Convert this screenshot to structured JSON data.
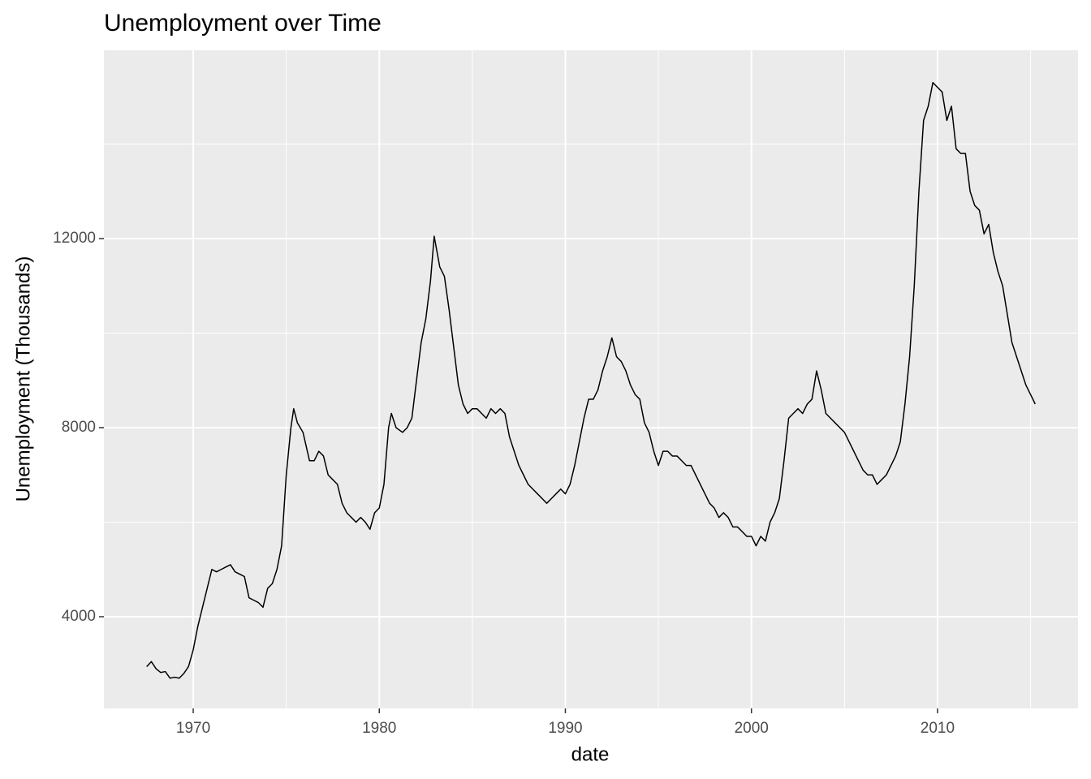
{
  "chart_data": {
    "type": "line",
    "title": "Unemployment over Time",
    "x_label": "date",
    "y_label": "Unemployment (Thousands)",
    "x": [
      1967.5,
      1967.75,
      1968,
      1968.25,
      1968.5,
      1968.75,
      1969,
      1969.25,
      1969.5,
      1969.75,
      1970,
      1970.25,
      1970.5,
      1970.75,
      1971,
      1971.25,
      1971.5,
      1971.75,
      1972,
      1972.25,
      1972.5,
      1972.75,
      1973,
      1973.25,
      1973.5,
      1973.75,
      1974,
      1974.25,
      1974.5,
      1974.75,
      1975,
      1975.25,
      1975.4,
      1975.6,
      1975.9,
      1976.25,
      1976.5,
      1976.75,
      1977,
      1977.25,
      1977.5,
      1977.75,
      1978,
      1978.25,
      1978.5,
      1978.75,
      1979,
      1979.25,
      1979.5,
      1979.75,
      1980,
      1980.25,
      1980.5,
      1980.65,
      1980.9,
      1981.25,
      1981.5,
      1981.75,
      1982,
      1982.25,
      1982.5,
      1982.75,
      1982.95,
      1983.25,
      1983.5,
      1983.75,
      1984,
      1984.25,
      1984.5,
      1984.75,
      1985,
      1985.25,
      1985.5,
      1985.75,
      1986,
      1986.25,
      1986.5,
      1986.75,
      1987,
      1987.25,
      1987.5,
      1987.75,
      1988,
      1988.25,
      1988.5,
      1988.75,
      1989,
      1989.25,
      1989.5,
      1989.75,
      1990,
      1990.25,
      1990.5,
      1990.75,
      1991,
      1991.25,
      1991.5,
      1991.75,
      1992,
      1992.25,
      1992.5,
      1992.75,
      1993,
      1993.25,
      1993.5,
      1993.75,
      1994,
      1994.25,
      1994.5,
      1994.75,
      1995,
      1995.25,
      1995.5,
      1995.75,
      1996,
      1996.25,
      1996.5,
      1996.75,
      1997,
      1997.25,
      1997.5,
      1997.75,
      1998,
      1998.25,
      1998.5,
      1998.75,
      1999,
      1999.25,
      1999.5,
      1999.75,
      2000,
      2000.25,
      2000.5,
      2000.75,
      2001,
      2001.25,
      2001.5,
      2001.75,
      2002,
      2002.25,
      2002.5,
      2002.75,
      2003,
      2003.25,
      2003.5,
      2003.75,
      2004,
      2004.25,
      2004.5,
      2004.75,
      2005,
      2005.25,
      2005.5,
      2005.75,
      2006,
      2006.25,
      2006.5,
      2006.75,
      2007,
      2007.25,
      2007.5,
      2007.75,
      2008,
      2008.25,
      2008.5,
      2008.75,
      2009,
      2009.25,
      2009.5,
      2009.75,
      2010,
      2010.25,
      2010.5,
      2010.75,
      2011,
      2011.25,
      2011.5,
      2011.75,
      2012,
      2012.25,
      2012.5,
      2012.75,
      2013,
      2013.25,
      2013.5,
      2013.75,
      2014,
      2014.25,
      2014.5,
      2014.75,
      2015,
      2015.25
    ],
    "values": [
      2944,
      3050,
      2900,
      2820,
      2840,
      2700,
      2720,
      2700,
      2800,
      2950,
      3300,
      3800,
      4200,
      4600,
      5000,
      4950,
      5000,
      5050,
      5100,
      4950,
      4900,
      4850,
      4400,
      4350,
      4300,
      4200,
      4600,
      4700,
      5000,
      5500,
      7000,
      8000,
      8400,
      8100,
      7900,
      7300,
      7300,
      7500,
      7400,
      7000,
      6900,
      6800,
      6400,
      6200,
      6100,
      6000,
      6100,
      6000,
      5850,
      6200,
      6300,
      6800,
      8000,
      8300,
      8000,
      7900,
      8000,
      8200,
      9000,
      9800,
      10300,
      11100,
      12050,
      11400,
      11200,
      10500,
      9700,
      8900,
      8500,
      8300,
      8400,
      8400,
      8300,
      8200,
      8400,
      8300,
      8400,
      8300,
      7800,
      7500,
      7200,
      7000,
      6800,
      6700,
      6600,
      6500,
      6400,
      6500,
      6600,
      6700,
      6600,
      6800,
      7200,
      7700,
      8200,
      8600,
      8600,
      8800,
      9200,
      9500,
      9900,
      9500,
      9400,
      9200,
      8900,
      8700,
      8600,
      8100,
      7900,
      7500,
      7200,
      7500,
      7500,
      7400,
      7400,
      7300,
      7200,
      7200,
      7000,
      6800,
      6600,
      6400,
      6300,
      6100,
      6200,
      6100,
      5900,
      5900,
      5800,
      5700,
      5700,
      5500,
      5700,
      5600,
      6000,
      6200,
      6500,
      7300,
      8200,
      8300,
      8400,
      8300,
      8500,
      8600,
      9200,
      8800,
      8300,
      8200,
      8100,
      8000,
      7900,
      7700,
      7500,
      7300,
      7100,
      7000,
      7000,
      6800,
      6900,
      7000,
      7200,
      7400,
      7700,
      8500,
      9500,
      11000,
      13000,
      14500,
      14800,
      15300,
      15200,
      15100,
      14500,
      14800,
      13900,
      13800,
      13800,
      13000,
      12700,
      12600,
      12100,
      12300,
      11700,
      11300,
      11000,
      10400,
      9800,
      9500,
      9200,
      8900,
      8700,
      8500
    ],
    "color": "#000000",
    "background": "#ebebeb",
    "grid": true,
    "xlim": [
      1965.2,
      2017.55
    ],
    "xticks": [
      1970,
      1980,
      1990,
      2000,
      2010
    ],
    "x_minor_grid": [
      1965,
      1975,
      1985,
      1995,
      2005,
      2015
    ],
    "ylim": [
      2060,
      15983
    ],
    "yticks": [
      4000,
      8000,
      12000
    ],
    "y_minor_grid": [
      2000,
      6000,
      10000,
      14000
    ]
  }
}
